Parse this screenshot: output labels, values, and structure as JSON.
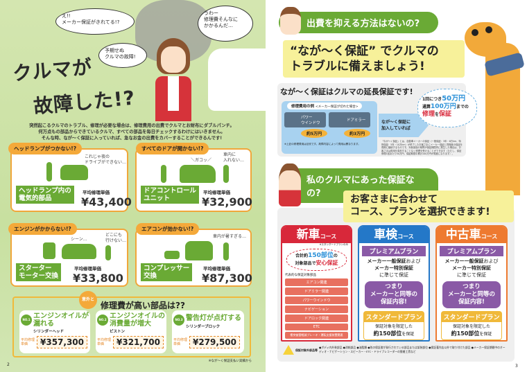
{
  "left_page": {
    "bubbles": [
      "え!!\nメーカー保証がきれてる!?",
      "予期せぬ\nクルマの故障!",
      "うわー\n修理費そんなに\nかかるんだ…"
    ],
    "title_line1": "クルマが",
    "title_line2": "故障した!?",
    "intro": [
      "突然起こるクルマのトラブル、修理が必要な場合は、修理費用の出費でクルマとお財布にダブルパンチ。",
      "何万点もの部品からできているクルマ、すべての部品を毎日チェックするわけにはいきません。",
      "そんな時、なが～く保証に入っていれば、急なお金の出費をカバーすることができるんです!"
    ],
    "avg_label": "平均修理単価",
    "cases": [
      {
        "tab": "ヘッドランプがつかない!?",
        "comment": "これじゃ夜の\nドライブができない…",
        "part": "ヘッドランプ内の\n電気的部品",
        "price": "¥43,400"
      },
      {
        "tab": "すべてのドアが開かない!?",
        "comment": "車内に\n入れない…",
        "sfx": "＼ガコッ／",
        "part": "ドアコントロール\nユニット",
        "price": "¥32,900"
      },
      {
        "tab": "エンジンがかからない!?",
        "comment": "どこにも\n行けない…",
        "sfx": "シーン…",
        "part": "スターター\nモーター交換",
        "price": "¥33,800"
      },
      {
        "tab": "エアコンが効かない!?",
        "comment": "車内が暑すぎる…",
        "part": "コンプレッサー\n交換",
        "price": "¥87,300"
      }
    ],
    "expensive": {
      "badge": "意外と",
      "title": "修理費が高い部品は??",
      "items": [
        {
          "rank": "NO.1",
          "symptom": "エンジンオイルが\n漏れる",
          "part": "シリンダーヘッド",
          "price": "¥357,300"
        },
        {
          "rank": "NO.2",
          "symptom": "エンジンオイルの\n消費量が増大",
          "part": "ピストン",
          "price": "¥321,700"
        },
        {
          "rank": "NO.3",
          "symptom": "警告灯が点灯する",
          "part": "シリンダーブロック",
          "price": "¥279,500"
        }
      ]
    },
    "footnote": "※なが～く保証支払い実績から",
    "page_number": "2"
  },
  "right_page": {
    "q1": "出費を抑える方法はないの?",
    "headline": [
      "“なが～く保証” でクルマの",
      "トラブルに備えましょう!"
    ],
    "section_title": "なが～く保証はクルマの延長保証です!",
    "example_label": "修理費用の例",
    "example_sub": "<メーカー保証が切れた場合>",
    "examples": [
      {
        "name": "パワー\nウインドウ",
        "cost": "約5万円"
      },
      {
        "name": "ドアミラー",
        "cost": "約3万円"
      }
    ],
    "example_note": "※上記の修理費用は目安です。故障内容によって費用は異なります。",
    "arrow_text": "なが～く保証に\n加入していれば",
    "cloud": {
      "l1a": "1回につき",
      "l1b": "50万円",
      "l2a": "通算",
      "l2b": "100万円",
      "l2c": "までの",
      "l3a": "修理",
      "l3b": "を",
      "l3c": "保証"
    },
    "fine_print": "「なが～く保証」とは、自動車メーカーの保証（一般保証：3年・6万km、特別保証：5年・10万km）が終了したお客さまにメーカー保証と同程度の保証を長期に継続するものです。対象部品の故障が保証期間内に発生した場合は、お客さまは費用を負担することなく修理を受けることができます（ただし、保証修理1回あたり50万円、保証期間中累計100万円が限度になります）。",
    "q2": "私のクルマにあった保証なの?",
    "headline2": [
      "お客さまに合わせて",
      "コース、プランを選択できます!"
    ],
    "course_suffix": "コース",
    "courses": [
      {
        "name": "新車",
        "color": "#d8283a",
        "note": "※スタンダードプランのみ",
        "cloud": {
          "a": "合計約",
          "b": "150部位",
          "c": "の",
          "d": "対象部品で",
          "e": "安心保証"
        },
        "list_title": "代表的な保証対象部品",
        "parts": [
          "エアコン関連",
          "ドアミラー関連",
          "パワーウインドウ",
          "ナビゲーション",
          "ドアロック関連",
          "ETC",
          "衝突被害軽減ブレーキ・運転支援装置関連"
        ]
      },
      {
        "name": "車検",
        "color": "#2478c8"
      },
      {
        "name": "中古車",
        "color": "#ee7a30"
      }
    ],
    "premium": {
      "title": "プレミアムプラン",
      "text_a": "メーカー一般保証",
      "text_b": "および",
      "text_c": "メーカー特別保証",
      "text_d": "に準じて保証",
      "summary": "つまり\nメーカーと同等の\n保証内容!"
    },
    "standard": {
      "title": "スタンダードプラン",
      "text": "保証対象を限定した",
      "bold": "約150部位",
      "tail": "を保証"
    },
    "exclusion_label": "保証対象外部品等",
    "exclusions": "●ボディ内外装部品 ●消耗部品 ●油脂類 ●別の保証書が発行されている部品または架装部位 ●保証著作店以外で取り付けた部品 ●メーカー保証期間中のオーディオ・ナビゲーション・スピーカー・ETC・ドライブレコーダーの脱着工賃など",
    "page_number": "3"
  },
  "colors": {
    "green": "#6aaa35",
    "orange": "#f0a63a",
    "yellow": "#f7f19a",
    "red": "#d8283a",
    "blue": "#2478c8",
    "purple": "#8a5aa6"
  }
}
